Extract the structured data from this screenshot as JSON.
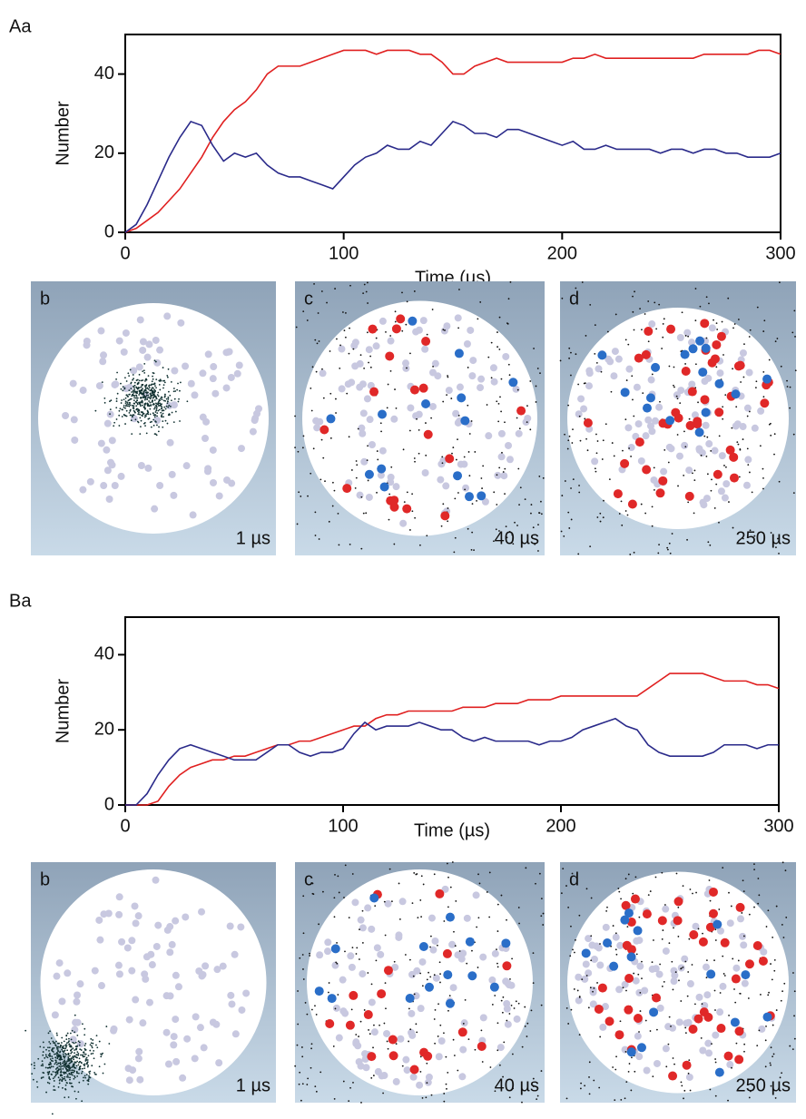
{
  "chart_data": [
    {
      "type": "line",
      "panel_label": "Aa",
      "ylabel": "Number",
      "xlabel": "Time (µs)",
      "xlim": [
        0,
        300
      ],
      "xticks": [
        0,
        100,
        200,
        300
      ],
      "ylim": [
        0,
        50
      ],
      "yticks": [
        0,
        20,
        40
      ],
      "x": [
        0,
        5,
        10,
        15,
        20,
        25,
        30,
        35,
        40,
        45,
        50,
        55,
        60,
        65,
        70,
        75,
        80,
        85,
        90,
        95,
        100,
        105,
        110,
        115,
        120,
        125,
        130,
        135,
        140,
        145,
        150,
        155,
        160,
        165,
        170,
        175,
        180,
        185,
        190,
        195,
        200,
        205,
        210,
        215,
        220,
        225,
        230,
        235,
        240,
        245,
        250,
        255,
        260,
        265,
        270,
        275,
        280,
        285,
        290,
        295,
        300
      ],
      "series": [
        {
          "color": "#e02020",
          "values": [
            0,
            1,
            3,
            5,
            8,
            11,
            15,
            19,
            24,
            28,
            31,
            33,
            36,
            40,
            42,
            42,
            42,
            43,
            44,
            45,
            46,
            46,
            46,
            45,
            46,
            46,
            46,
            45,
            45,
            43,
            40,
            40,
            42,
            43,
            44,
            43,
            43,
            43,
            43,
            43,
            43,
            44,
            44,
            45,
            44,
            44,
            44,
            44,
            44,
            44,
            44,
            44,
            44,
            45,
            45,
            45,
            45,
            45,
            46,
            46,
            45
          ]
        },
        {
          "color": "#2a2a8a",
          "values": [
            0,
            2,
            7,
            13,
            19,
            24,
            28,
            27,
            22,
            18,
            20,
            19,
            20,
            17,
            15,
            14,
            14,
            13,
            12,
            11,
            14,
            17,
            19,
            20,
            22,
            21,
            21,
            23,
            22,
            25,
            28,
            27,
            25,
            25,
            24,
            26,
            26,
            25,
            24,
            23,
            22,
            23,
            21,
            21,
            22,
            21,
            21,
            21,
            21,
            20,
            21,
            21,
            20,
            21,
            21,
            20,
            20,
            19,
            19,
            19,
            20
          ]
        }
      ],
      "images": [
        {
          "label": "b",
          "time": "1 µs"
        },
        {
          "label": "c",
          "time": "40 µs"
        },
        {
          "label": "d",
          "time": "250 µs"
        }
      ]
    },
    {
      "type": "line",
      "panel_label": "Ba",
      "ylabel": "Number",
      "xlabel": "Time (µs)",
      "xlim": [
        0,
        300
      ],
      "xticks": [
        0,
        100,
        200,
        300
      ],
      "ylim": [
        0,
        50
      ],
      "yticks": [
        0,
        20,
        40
      ],
      "x": [
        0,
        5,
        10,
        15,
        20,
        25,
        30,
        35,
        40,
        45,
        50,
        55,
        60,
        65,
        70,
        75,
        80,
        85,
        90,
        95,
        100,
        105,
        110,
        115,
        120,
        125,
        130,
        135,
        140,
        145,
        150,
        155,
        160,
        165,
        170,
        175,
        180,
        185,
        190,
        195,
        200,
        205,
        210,
        215,
        220,
        225,
        230,
        235,
        240,
        245,
        250,
        255,
        260,
        265,
        270,
        275,
        280,
        285,
        290,
        295,
        300
      ],
      "series": [
        {
          "color": "#e02020",
          "values": [
            0,
            0,
            0,
            1,
            5,
            8,
            10,
            11,
            12,
            12,
            13,
            13,
            14,
            15,
            16,
            16,
            17,
            17,
            18,
            19,
            20,
            21,
            21,
            23,
            24,
            24,
            25,
            25,
            25,
            25,
            25,
            26,
            26,
            26,
            27,
            27,
            27,
            28,
            28,
            28,
            29,
            29,
            29,
            29,
            29,
            29,
            29,
            29,
            31,
            33,
            35,
            35,
            35,
            35,
            34,
            33,
            33,
            33,
            32,
            32,
            31
          ]
        },
        {
          "color": "#2a2a8a",
          "values": [
            0,
            0,
            3,
            8,
            12,
            15,
            16,
            15,
            14,
            13,
            12,
            12,
            12,
            14,
            16,
            16,
            14,
            13,
            14,
            14,
            15,
            19,
            22,
            20,
            21,
            21,
            21,
            22,
            21,
            20,
            20,
            18,
            17,
            18,
            17,
            17,
            17,
            17,
            16,
            17,
            17,
            18,
            20,
            21,
            22,
            23,
            21,
            20,
            16,
            14,
            13,
            13,
            13,
            13,
            14,
            16,
            16,
            16,
            15,
            16,
            16
          ]
        }
      ],
      "images": [
        {
          "label": "b",
          "time": "1 µs"
        },
        {
          "label": "c",
          "time": "40 µs"
        },
        {
          "label": "d",
          "time": "250 µs"
        }
      ]
    }
  ]
}
